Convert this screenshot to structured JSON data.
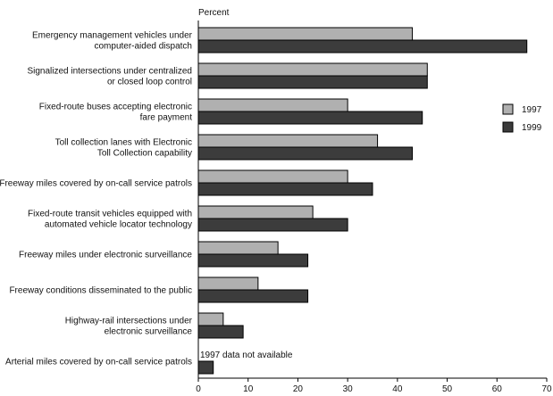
{
  "chart_data": {
    "type": "bar",
    "orientation": "horizontal",
    "ylabel": "Percent",
    "xlim": [
      0,
      70
    ],
    "xticks": [
      0,
      10,
      20,
      30,
      40,
      50,
      60,
      70
    ],
    "grid": false,
    "legend_position": "right",
    "categories": [
      [
        "Emergency management vehicles under",
        "computer-aided dispatch"
      ],
      [
        "Signalized intersections under centralized",
        "or closed loop control"
      ],
      [
        "Fixed-route buses accepting electronic",
        "fare payment"
      ],
      [
        "Toll collection lanes with Electronic",
        "Toll Collection capability"
      ],
      [
        "Freeway miles covered by on-call service patrols"
      ],
      [
        "Fixed-route transit vehicles equipped with",
        "automated vehicle locator technology"
      ],
      [
        "Freeway miles under electronic surveillance"
      ],
      [
        "Freeway conditions disseminated to the public"
      ],
      [
        "Highway-rail intersections under",
        "electronic surveillance"
      ],
      [
        "Arterial miles covered by on-call service patrols"
      ]
    ],
    "series": [
      {
        "name": "1997",
        "color": "#b0b0b0",
        "values": [
          43,
          46,
          30,
          36,
          30,
          23,
          16,
          12,
          5,
          null
        ]
      },
      {
        "name": "1999",
        "color": "#3c3c3c",
        "values": [
          66,
          46,
          45,
          43,
          35,
          30,
          22,
          22,
          9,
          3
        ]
      }
    ],
    "annotations": [
      {
        "category_index": 9,
        "text": "1997 data not available"
      }
    ]
  }
}
